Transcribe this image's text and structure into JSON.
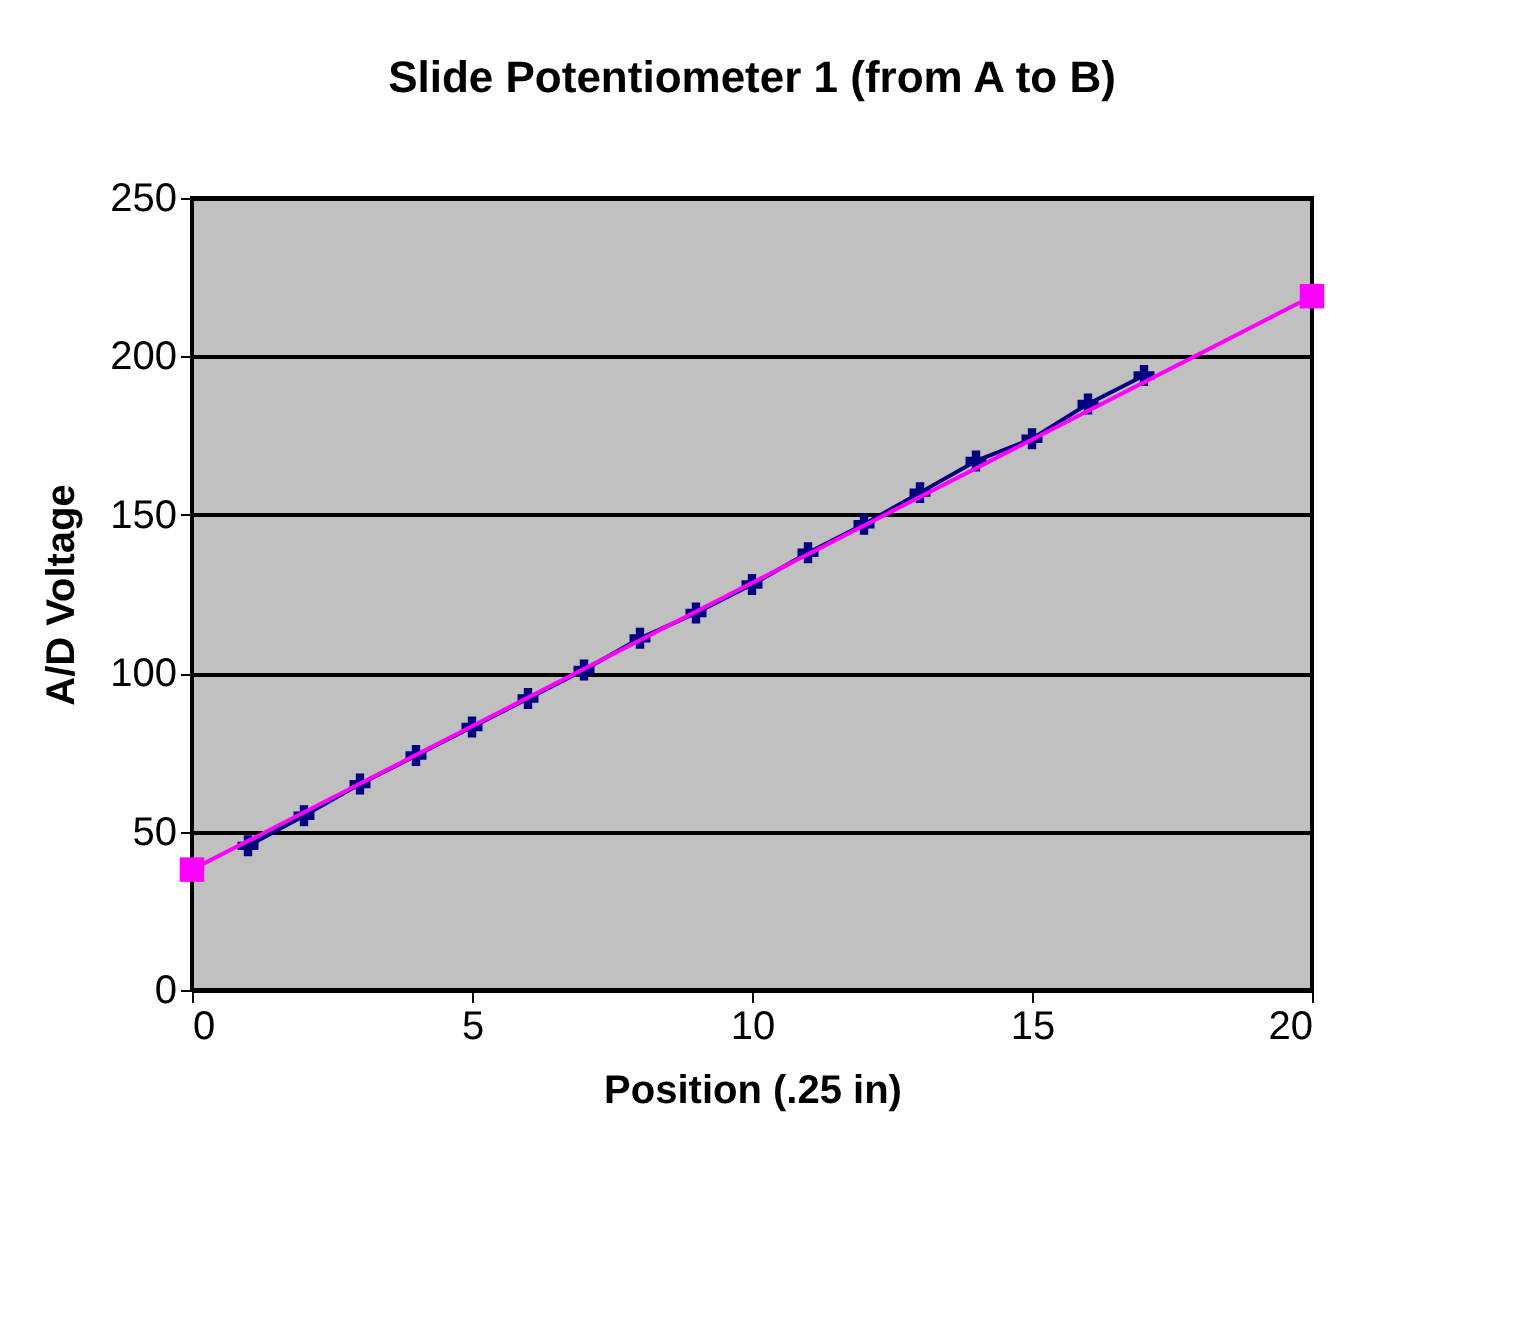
{
  "chart_data": {
    "type": "line",
    "title": "Slide Potentiometer 1 (from A to B)",
    "xlabel": "Position (.25 in)",
    "ylabel": "A/D Voltage",
    "series": [
      {
        "color": "#000080",
        "marker": "cross",
        "x": [
          1,
          2,
          3,
          4,
          5,
          6,
          7,
          8,
          9,
          10,
          11,
          12,
          13,
          14,
          15,
          16,
          17
        ],
        "values": [
          45.5,
          55,
          65,
          74,
          83,
          92,
          101,
          111,
          119,
          128,
          138,
          147,
          157,
          167,
          174,
          185,
          194
        ]
      },
      {
        "color": "#ff00ff",
        "marker": "square",
        "x": [
          0,
          20
        ],
        "values": [
          38,
          219
        ]
      }
    ],
    "xlim": [
      0,
      20
    ],
    "xticks": [
      0,
      5,
      10,
      15,
      20
    ],
    "ylim": [
      0,
      250
    ],
    "yticks": [
      0,
      50,
      100,
      150,
      200,
      250
    ],
    "grid": "y"
  }
}
